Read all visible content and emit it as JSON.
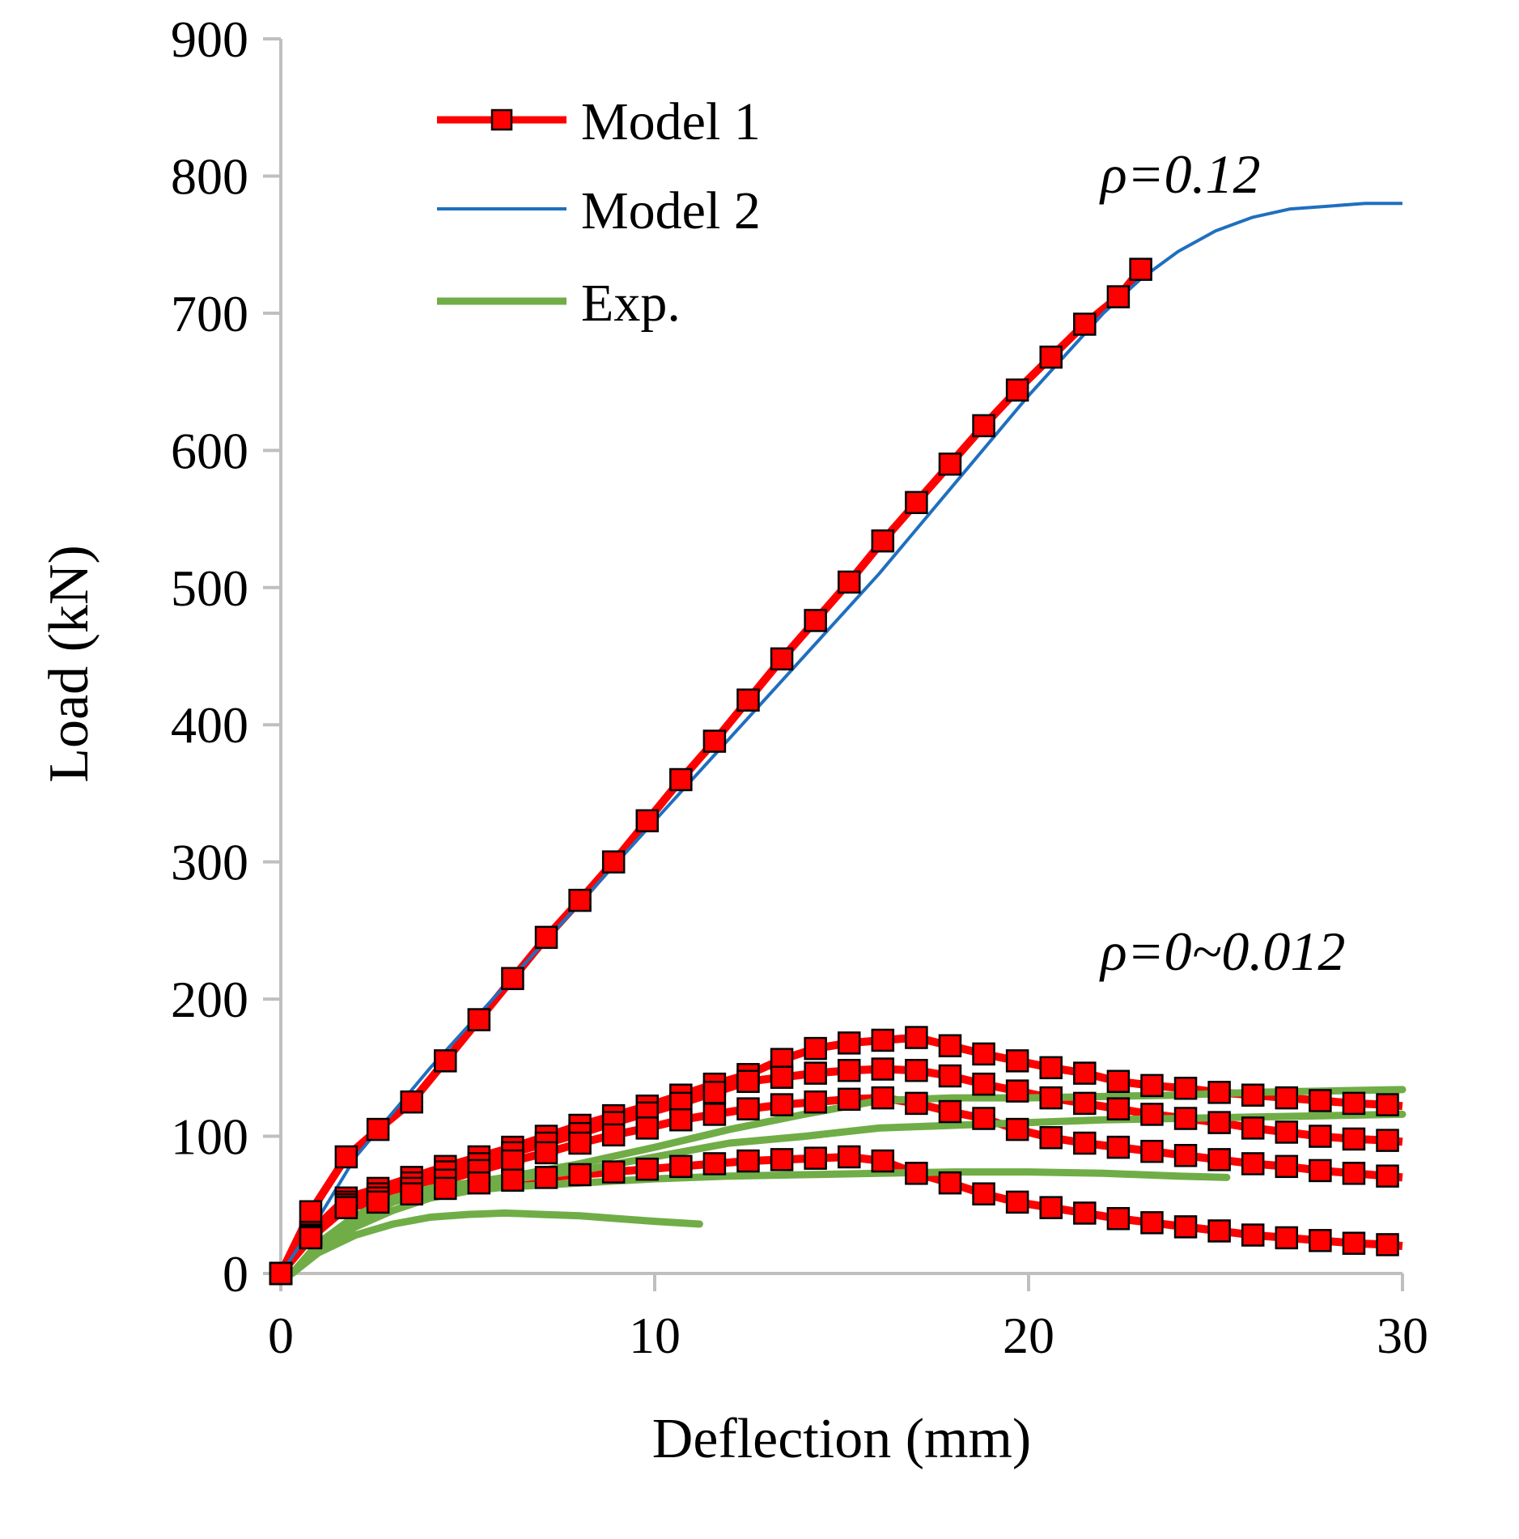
{
  "chart_data": {
    "type": "line",
    "xlabel": "Deflection (mm)",
    "ylabel": "Load (kN)",
    "xlim": [
      0,
      30
    ],
    "ylim": [
      0,
      900
    ],
    "xticks": [
      0,
      10,
      20,
      30
    ],
    "yticks": [
      0,
      100,
      200,
      300,
      400,
      500,
      600,
      700,
      800,
      900
    ],
    "grid": false,
    "legend_position": "top-left",
    "legend": [
      "Model 1",
      "Model 2",
      "Exp."
    ],
    "colors": {
      "model1": "#ff0000",
      "model1_marker_edge": "#000000",
      "model2": "#1f6fbf",
      "exp": "#70ad47"
    },
    "annotations": [
      {
        "text": "ρ=0.12",
        "x": 22.5,
        "y": 775
      },
      {
        "text": "ρ=0~0.012",
        "x": 22.5,
        "y": 220
      }
    ],
    "series": [
      {
        "name": "Model 1",
        "kind": "model1",
        "x": [
          0,
          0.8,
          1.75,
          2.6,
          3.5,
          4.4,
          5.3,
          6.2,
          7.1,
          8.0,
          8.9,
          9.8,
          10.7,
          11.6,
          12.5,
          13.4,
          14.3,
          15.2,
          16.1,
          17.0,
          17.9,
          18.8,
          19.7,
          20.6,
          21.5,
          22.4,
          23.0
        ],
        "y": [
          0,
          45,
          85,
          105,
          125,
          155,
          185,
          215,
          245,
          272,
          300,
          330,
          360,
          388,
          418,
          448,
          476,
          504,
          534,
          562,
          590,
          618,
          644,
          668,
          692,
          712,
          732
        ]
      },
      {
        "name": "Model 2",
        "kind": "model2",
        "x": [
          0,
          1,
          2,
          4,
          6,
          8,
          10,
          12,
          14,
          16,
          18,
          20,
          22,
          23,
          24,
          25,
          26,
          27,
          28,
          29,
          30
        ],
        "y": [
          0,
          40,
          85,
          150,
          210,
          270,
          330,
          390,
          450,
          510,
          575,
          640,
          700,
          725,
          745,
          760,
          770,
          776,
          778,
          780,
          780
        ]
      },
      {
        "kind": "model1",
        "x": [
          0,
          0.8,
          1.75,
          2.6,
          3.5,
          4.4,
          5.3,
          6.2,
          7.1,
          8.0,
          8.9,
          9.8,
          10.7,
          11.6,
          12.5,
          13.4,
          14.3,
          15.2,
          16.1,
          17.0,
          17.9,
          18.8,
          19.7,
          20.6,
          21.5,
          22.4,
          23.3,
          24.2,
          25.1,
          26.0,
          26.9,
          27.8,
          28.7,
          29.6,
          30.0
        ],
        "y": [
          0,
          30,
          55,
          62,
          70,
          78,
          85,
          92,
          100,
          108,
          115,
          122,
          130,
          138,
          145,
          156,
          164,
          168,
          170,
          172,
          166,
          160,
          155,
          150,
          146,
          140,
          137,
          135,
          132,
          130,
          128,
          126,
          124,
          123,
          122
        ]
      },
      {
        "kind": "model1",
        "x": [
          0,
          0.8,
          1.75,
          2.6,
          3.5,
          4.4,
          5.3,
          6.2,
          7.1,
          8.0,
          8.9,
          9.8,
          10.7,
          11.6,
          12.5,
          13.4,
          14.3,
          15.2,
          16.1,
          17.0,
          17.9,
          18.8,
          19.7,
          20.6,
          21.5,
          22.4,
          23.3,
          24.2,
          25.1,
          26.0,
          26.9,
          27.8,
          28.7,
          29.6,
          30.0
        ],
        "y": [
          0,
          28,
          52,
          58,
          66,
          74,
          80,
          88,
          95,
          102,
          110,
          117,
          124,
          132,
          140,
          143,
          146,
          148,
          149,
          148,
          144,
          138,
          133,
          128,
          124,
          120,
          116,
          113,
          110,
          106,
          103,
          100,
          98,
          97,
          96
        ]
      },
      {
        "kind": "model1",
        "x": [
          0,
          0.8,
          1.75,
          2.6,
          3.5,
          4.4,
          5.3,
          6.2,
          7.1,
          8.0,
          8.9,
          9.8,
          10.7,
          11.6,
          12.5,
          13.4,
          14.3,
          15.2,
          16.1,
          17.0,
          17.9,
          18.8,
          19.7,
          20.6,
          21.5,
          22.4,
          23.3,
          24.2,
          25.1,
          26.0,
          26.9,
          27.8,
          28.7,
          29.6,
          30.0
        ],
        "y": [
          0,
          27,
          50,
          55,
          62,
          68,
          75,
          82,
          88,
          95,
          101,
          106,
          112,
          116,
          120,
          123,
          125,
          127,
          128,
          124,
          118,
          113,
          105,
          99,
          95,
          92,
          89,
          86,
          83,
          80,
          78,
          75,
          73,
          71,
          70
        ]
      },
      {
        "kind": "model1",
        "x": [
          0,
          0.8,
          1.75,
          2.6,
          3.5,
          4.4,
          5.3,
          6.2,
          7.1,
          8.0,
          8.9,
          9.8,
          10.7,
          11.6,
          12.5,
          13.4,
          14.3,
          15.2,
          16.1,
          17.0,
          17.9,
          18.8,
          19.7,
          20.6,
          21.5,
          22.4,
          23.3,
          24.2,
          25.1,
          26.0,
          26.9,
          27.8,
          28.7,
          29.6,
          30.0
        ],
        "y": [
          0,
          26,
          48,
          52,
          58,
          62,
          66,
          68,
          70,
          72,
          74,
          76,
          78,
          80,
          82,
          83,
          84,
          85,
          82,
          73,
          66,
          58,
          52,
          48,
          44,
          40,
          37,
          34,
          31,
          28,
          26,
          24,
          22,
          21,
          20
        ]
      },
      {
        "kind": "exp",
        "x": [
          0.3,
          1,
          2,
          3,
          4,
          5,
          6,
          7,
          8,
          9,
          10,
          11.2
        ],
        "y": [
          0,
          15,
          28,
          36,
          41,
          43,
          44,
          43,
          42,
          40,
          38,
          36
        ]
      },
      {
        "kind": "exp",
        "x": [
          0.3,
          1,
          2,
          3,
          4,
          5,
          6,
          8,
          10,
          12,
          14,
          16,
          18,
          20,
          22,
          24,
          25.3
        ],
        "y": [
          0,
          18,
          34,
          46,
          55,
          60,
          63,
          66,
          69,
          71,
          72,
          73,
          74,
          74,
          73,
          71,
          70
        ]
      },
      {
        "kind": "exp",
        "x": [
          0.3,
          1,
          2,
          3,
          4,
          5,
          6,
          8,
          10,
          12,
          14,
          16,
          18,
          20,
          22,
          24,
          26,
          28,
          30
        ],
        "y": [
          0,
          20,
          38,
          52,
          60,
          64,
          68,
          75,
          85,
          95,
          100,
          106,
          108,
          110,
          112,
          113,
          114,
          115,
          116
        ]
      },
      {
        "kind": "exp",
        "x": [
          0.3,
          1,
          2,
          3,
          4,
          5,
          6,
          8,
          10,
          12,
          14,
          16,
          18,
          20,
          22,
          24,
          26,
          28,
          30
        ],
        "y": [
          0,
          22,
          42,
          55,
          62,
          66,
          70,
          80,
          92,
          105,
          116,
          126,
          128,
          128,
          129,
          130,
          132,
          133,
          134
        ]
      }
    ]
  }
}
